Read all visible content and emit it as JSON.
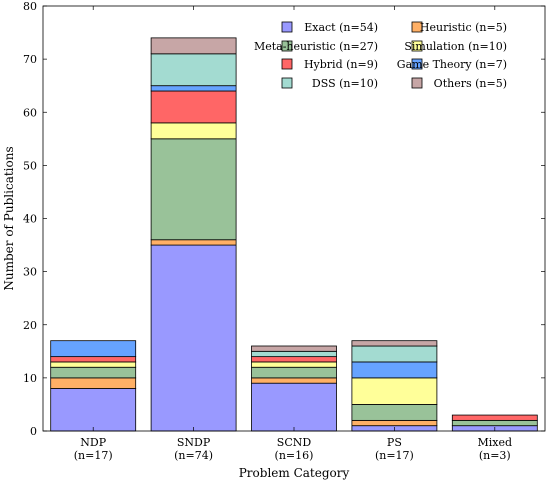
{
  "chart_data": {
    "type": "bar",
    "stacked": true,
    "title": "",
    "xlabel": "Problem Category",
    "ylabel": "Number of Publications",
    "ylim": [
      0,
      80
    ],
    "yticks": [
      0,
      10,
      20,
      30,
      40,
      50,
      60,
      70,
      80
    ],
    "grid": false,
    "legend_position": "top-right",
    "categories": [
      {
        "name": "NDP",
        "count_label": "(n=17)"
      },
      {
        "name": "SNDP",
        "count_label": "(n=74)"
      },
      {
        "name": "SCND",
        "count_label": "(n=16)"
      },
      {
        "name": "PS",
        "count_label": "(n=17)"
      },
      {
        "name": "Mixed",
        "count_label": "(n=3)"
      }
    ],
    "series": [
      {
        "name": "Exact (n=54)",
        "color": "#9999ff",
        "values": [
          8,
          35,
          9,
          1,
          1
        ]
      },
      {
        "name": "Heuristic (n=5)",
        "color": "#ffb066",
        "values": [
          2,
          1,
          1,
          1,
          0
        ]
      },
      {
        "name": "Meta-heuristic (n=27)",
        "color": "#99c299",
        "values": [
          2,
          19,
          2,
          3,
          1
        ]
      },
      {
        "name": "Simulation (n=10)",
        "color": "#ffff99",
        "values": [
          1,
          3,
          1,
          5,
          0
        ]
      },
      {
        "name": "Hybrid (n=9)",
        "color": "#ff6666",
        "values": [
          1,
          6,
          1,
          0,
          1
        ]
      },
      {
        "name": "Game Theory (n=7)",
        "color": "#66a3ff",
        "values": [
          3,
          1,
          0,
          3,
          0
        ]
      },
      {
        "name": "DSS (n=10)",
        "color": "#a3dbd1",
        "values": [
          0,
          6,
          1,
          3,
          0
        ]
      },
      {
        "name": "Others (n=5)",
        "color": "#c7a6a6",
        "values": [
          0,
          3,
          1,
          1,
          0
        ]
      }
    ]
  }
}
